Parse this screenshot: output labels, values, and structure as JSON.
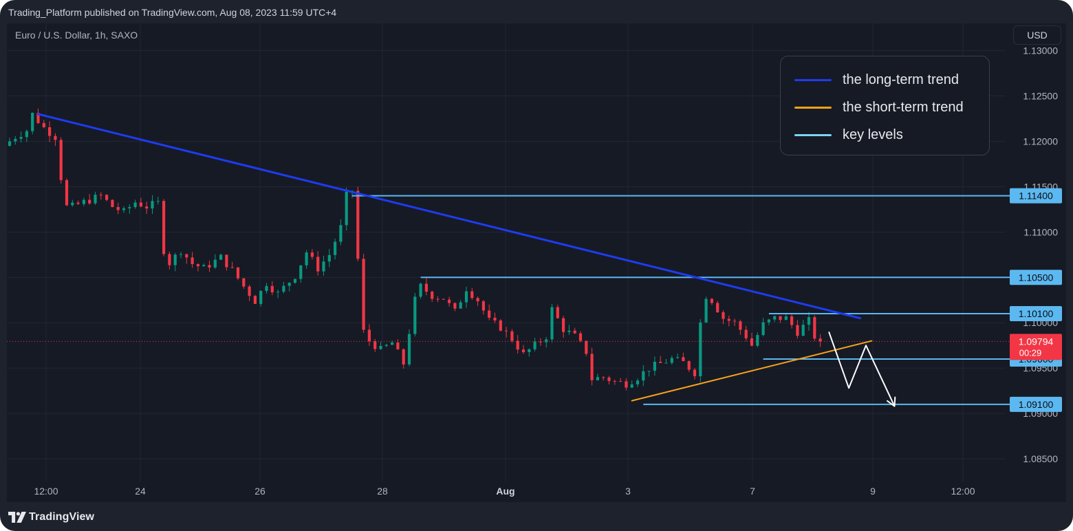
{
  "header": {
    "published_text": "Trading_Platform published on TradingView.com, Aug 08, 2023 11:59 UTC+4"
  },
  "chart_header": {
    "symbol_text": "Euro / U.S. Dollar, 1h, SAXO",
    "currency_button": "USD"
  },
  "legend": {
    "items": [
      {
        "label": "the long-term trend",
        "color": "#1e3cf0"
      },
      {
        "label": "the short-term trend",
        "color": "#f7a21b"
      },
      {
        "label": "key levels",
        "color": "#7fd6f5"
      }
    ]
  },
  "footer": {
    "brand": "TradingView"
  },
  "colors": {
    "up": "#089981",
    "down": "#f23645",
    "level": "#5cb8f0",
    "long_trend": "#1e3cf0",
    "short_trend": "#f7a21b",
    "projection": "#ffffff"
  },
  "chart_data": {
    "type": "candlestick",
    "symbol": "Euro / U.S. Dollar",
    "interval": "1h",
    "exchange": "SAXO",
    "y_axis": {
      "range": [
        1.0825,
        1.133
      ],
      "ticks": [
        "1.13000",
        "1.12500",
        "1.12000",
        "1.11500",
        "1.11000",
        "1.10500",
        "1.10000",
        "1.09500",
        "1.09000",
        "1.08500"
      ]
    },
    "x_axis": {
      "ticks": [
        {
          "label": "12:00",
          "bold": false
        },
        {
          "label": "24",
          "bold": false
        },
        {
          "label": "26",
          "bold": false
        },
        {
          "label": "28",
          "bold": false
        },
        {
          "label": "Aug",
          "bold": true
        },
        {
          "label": "3",
          "bold": false
        },
        {
          "label": "7",
          "bold": false
        },
        {
          "label": "9",
          "bold": false
        },
        {
          "label": "12:00",
          "bold": false
        }
      ]
    },
    "price_path": [
      [
        0,
        1.1195
      ],
      [
        2,
        1.1205
      ],
      [
        4,
        1.1212
      ],
      [
        5,
        1.123
      ],
      [
        7,
        1.1215
      ],
      [
        9,
        1.1205
      ],
      [
        10,
        1.116
      ],
      [
        11,
        1.1128
      ],
      [
        12,
        1.1128
      ],
      [
        14,
        1.1133
      ],
      [
        17,
        1.114
      ],
      [
        19,
        1.1128
      ],
      [
        21,
        1.1122
      ],
      [
        23,
        1.1133
      ],
      [
        25,
        1.1128
      ],
      [
        27,
        1.1132
      ],
      [
        28,
        1.108
      ],
      [
        29,
        1.1066
      ],
      [
        31,
        1.108
      ],
      [
        33,
        1.1065
      ],
      [
        35,
        1.106
      ],
      [
        38,
        1.1072
      ],
      [
        40,
        1.1058
      ],
      [
        42,
        1.104
      ],
      [
        44,
        1.1024
      ],
      [
        46,
        1.1044
      ],
      [
        48,
        1.1032
      ],
      [
        51,
        1.1052
      ],
      [
        53,
        1.1078
      ],
      [
        55,
        1.106
      ],
      [
        57,
        1.1075
      ],
      [
        59,
        1.1105
      ],
      [
        60,
        1.114
      ],
      [
        61,
        1.1146
      ],
      [
        62,
        1.107
      ],
      [
        63,
        1.099
      ],
      [
        64,
        1.098
      ],
      [
        66,
        1.097
      ],
      [
        68,
        1.0978
      ],
      [
        70,
        1.0955
      ],
      [
        71,
        1.099
      ],
      [
        72,
        1.1025
      ],
      [
        73,
        1.104
      ],
      [
        75,
        1.103
      ],
      [
        77,
        1.1027
      ],
      [
        79,
        1.1012
      ],
      [
        81,
        1.1038
      ],
      [
        83,
        1.1025
      ],
      [
        85,
        1.1002
      ],
      [
        87,
        1.0995
      ],
      [
        89,
        1.0982
      ],
      [
        91,
        1.0965
      ],
      [
        93,
        1.0975
      ],
      [
        95,
        1.0985
      ],
      [
        96,
        1.1015
      ],
      [
        98,
        1.0993
      ],
      [
        100,
        1.0985
      ],
      [
        102,
        1.0968
      ],
      [
        103,
        1.0938
      ],
      [
        105,
        1.094
      ],
      [
        107,
        1.0935
      ],
      [
        109,
        1.0933
      ],
      [
        111,
        1.094
      ],
      [
        113,
        1.095
      ],
      [
        115,
        1.0955
      ],
      [
        117,
        1.096
      ],
      [
        119,
        1.0956
      ],
      [
        121,
        1.0945
      ],
      [
        122,
        1.1
      ],
      [
        123,
        1.103
      ],
      [
        124,
        1.1025
      ],
      [
        126,
        1.1005
      ],
      [
        128,
        1.1
      ],
      [
        130,
        1.0985
      ],
      [
        131,
        1.0975
      ],
      [
        133,
        1.0998
      ],
      [
        135,
        1.1005
      ],
      [
        137,
        1.1005
      ],
      [
        139,
        1.099
      ],
      [
        141,
        1.1002
      ],
      [
        142,
        1.0985
      ]
    ],
    "candle_count": 143,
    "lines": [
      {
        "name": "the long-term trend",
        "from": [
          5,
          1.123
        ],
        "to": [
          149,
          1.1005
        ]
      },
      {
        "name": "the short-term trend",
        "from": [
          109,
          1.0914
        ],
        "to": [
          151,
          1.098
        ]
      }
    ],
    "key_levels": [
      {
        "price": 1.114,
        "label": "1.11400",
        "from_index": 60
      },
      {
        "price": 1.105,
        "label": "1.10500",
        "from_index": 72
      },
      {
        "price": 1.101,
        "label": "1.10100",
        "from_index": 133
      },
      {
        "price": 1.096,
        "label": "1.09600",
        "from_index": 132
      },
      {
        "price": 1.091,
        "label": "1.09100",
        "from_index": 111
      }
    ],
    "current_price": {
      "price": 1.09794,
      "label": "1.09794",
      "countdown": "00:29"
    },
    "projection_path": [
      [
        143.5,
        1.099
      ],
      [
        147,
        1.0928
      ],
      [
        150,
        1.0975
      ],
      [
        155,
        1.0908
      ]
    ]
  }
}
